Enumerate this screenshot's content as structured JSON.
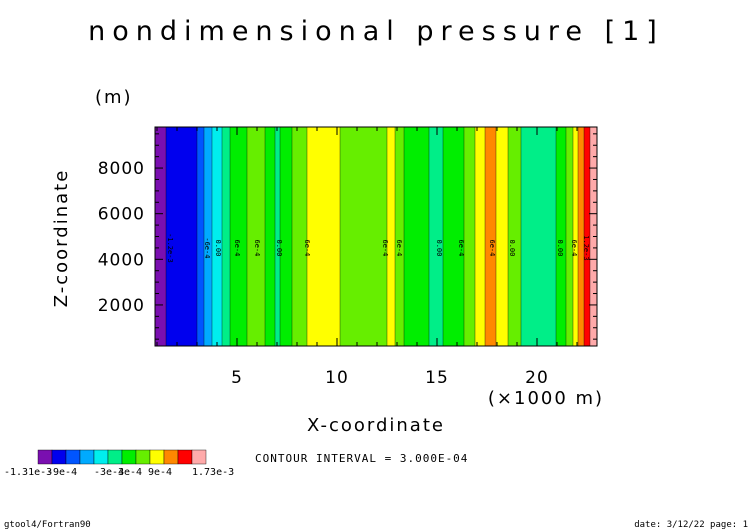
{
  "chart_data": {
    "type": "heatmap",
    "title": "nondimensional pressure [1]",
    "xlabel": "X-coordinate",
    "ylabel": "Z-coordinate",
    "x_unit": "(×1000 m)",
    "y_unit": "(m)",
    "xlim": [
      0.9,
      23.0
    ],
    "ylim": [
      200,
      9800
    ],
    "x_ticks": [
      5,
      10,
      15,
      20
    ],
    "x_tick_labels": [
      "5",
      "10",
      "15",
      "20"
    ],
    "y_ticks": [
      2000,
      4000,
      6000,
      8000
    ],
    "y_tick_labels": [
      "2000",
      "4000",
      "6000",
      "8000"
    ],
    "bands": [
      {
        "x0": 0.9,
        "x1": 1.45,
        "color": "#7a0fb0"
      },
      {
        "x0": 1.45,
        "x1": 3.0,
        "color": "#0000ee"
      },
      {
        "x0": 3.0,
        "x1": 3.35,
        "color": "#0055ff"
      },
      {
        "x0": 3.35,
        "x1": 3.75,
        "color": "#00aaff"
      },
      {
        "x0": 3.75,
        "x1": 4.25,
        "color": "#00eeee"
      },
      {
        "x0": 4.25,
        "x1": 4.65,
        "color": "#00ee88"
      },
      {
        "x0": 4.65,
        "x1": 5.5,
        "color": "#00ee00"
      },
      {
        "x0": 5.5,
        "x1": 6.4,
        "color": "#66ee00"
      },
      {
        "x0": 6.4,
        "x1": 6.9,
        "color": "#00ee00"
      },
      {
        "x0": 6.9,
        "x1": 7.15,
        "color": "#00ee88"
      },
      {
        "x0": 7.15,
        "x1": 7.75,
        "color": "#00ee00"
      },
      {
        "x0": 7.75,
        "x1": 8.5,
        "color": "#66ee00"
      },
      {
        "x0": 8.5,
        "x1": 10.15,
        "color": "#ffff00"
      },
      {
        "x0": 10.15,
        "x1": 12.5,
        "color": "#66ee00"
      },
      {
        "x0": 12.5,
        "x1": 12.9,
        "color": "#ffff00"
      },
      {
        "x0": 12.9,
        "x1": 13.35,
        "color": "#66ee00"
      },
      {
        "x0": 13.35,
        "x1": 14.6,
        "color": "#00ee00"
      },
      {
        "x0": 14.6,
        "x1": 15.3,
        "color": "#00ee88"
      },
      {
        "x0": 15.3,
        "x1": 16.35,
        "color": "#00ee00"
      },
      {
        "x0": 16.35,
        "x1": 16.9,
        "color": "#66ee00"
      },
      {
        "x0": 16.9,
        "x1": 17.4,
        "color": "#ffff00"
      },
      {
        "x0": 17.4,
        "x1": 17.95,
        "color": "#ff8800"
      },
      {
        "x0": 17.95,
        "x1": 18.55,
        "color": "#ffff00"
      },
      {
        "x0": 18.55,
        "x1": 19.2,
        "color": "#66ee00"
      },
      {
        "x0": 19.2,
        "x1": 20.95,
        "color": "#00ee88"
      },
      {
        "x0": 20.95,
        "x1": 21.45,
        "color": "#00ee00"
      },
      {
        "x0": 21.45,
        "x1": 21.8,
        "color": "#66ee00"
      },
      {
        "x0": 21.8,
        "x1": 22.05,
        "color": "#ffff00"
      },
      {
        "x0": 22.05,
        "x1": 22.35,
        "color": "#ff8800"
      },
      {
        "x0": 22.35,
        "x1": 22.65,
        "color": "#ff0000"
      },
      {
        "x0": 22.65,
        "x1": 23.0,
        "color": "#ffaaaa"
      }
    ],
    "contour_labels": [
      {
        "x": 1.55,
        "text": "-1.2e-3"
      },
      {
        "x": 3.4,
        "text": "-6e-4"
      },
      {
        "x": 3.95,
        "text": "0.00"
      },
      {
        "x": 4.9,
        "text": "6e-4"
      },
      {
        "x": 5.9,
        "text": "6e-4"
      },
      {
        "x": 7.0,
        "text": "0.00"
      },
      {
        "x": 8.4,
        "text": "6e-4"
      },
      {
        "x": 12.3,
        "text": "6e-4"
      },
      {
        "x": 13.0,
        "text": "6e-4"
      },
      {
        "x": 15.0,
        "text": "0.00"
      },
      {
        "x": 16.1,
        "text": "6e-4"
      },
      {
        "x": 17.65,
        "text": "6e-4"
      },
      {
        "x": 18.65,
        "text": "0.00"
      },
      {
        "x": 21.05,
        "text": "0.00"
      },
      {
        "x": 21.75,
        "text": "6e-4"
      },
      {
        "x": 22.35,
        "text": "1.2e-3"
      }
    ],
    "colorbar": {
      "colors": [
        "#7a0fb0",
        "#0000ee",
        "#0055ff",
        "#00aaff",
        "#00eeee",
        "#00ee88",
        "#00ee00",
        "#66ee00",
        "#ffff00",
        "#ff8800",
        "#ff0000",
        "#ffaaaa"
      ],
      "tick_labels": [
        "-1.31e-3",
        "-9e-4",
        "-3e-4",
        "3e-4",
        "9e-4",
        "1.73e-3"
      ]
    },
    "contour_interval_text": "CONTOUR INTERVAL = 3.000E-04"
  },
  "footer": {
    "left": "gtool4/Fortran90",
    "right": "date: 3/12/22 page: 1"
  }
}
